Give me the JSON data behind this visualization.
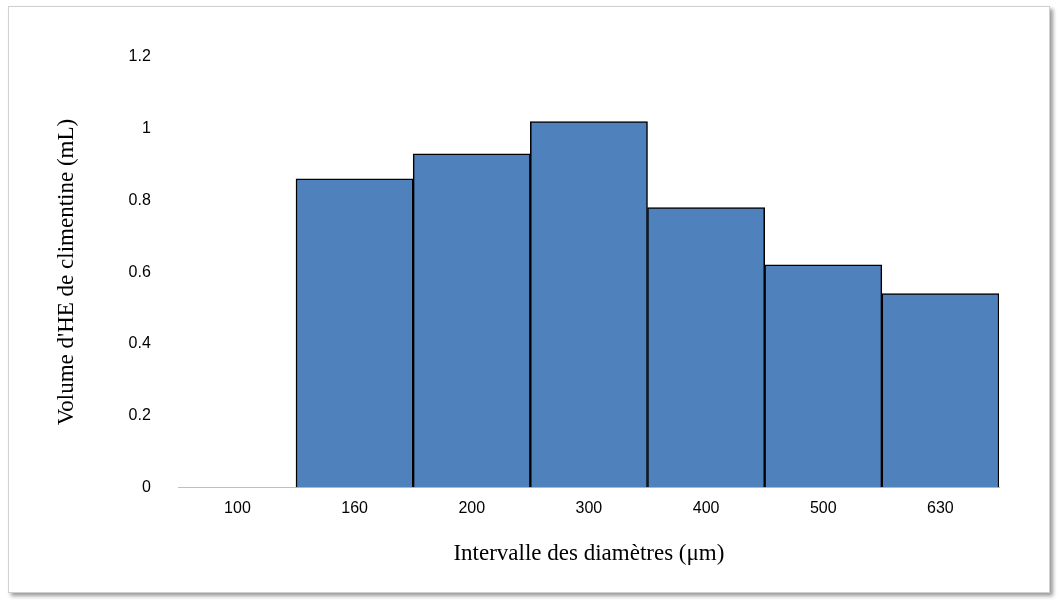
{
  "chart_data": {
    "type": "bar",
    "xlabel": "Intervalle des diamètres (μm)",
    "ylabel": "Volume d'HE de climentine (mL)",
    "categories": [
      "100",
      "160",
      "200",
      "300",
      "400",
      "500",
      "630"
    ],
    "values": [
      null,
      0.86,
      0.93,
      1.02,
      0.78,
      0.62,
      0.54
    ],
    "color": "#4f81bd",
    "ylim": [
      0,
      1.2
    ],
    "yticks": [
      0,
      0.2,
      0.4,
      0.6,
      0.8,
      1,
      1.2
    ],
    "grid": false,
    "legend": false
  }
}
